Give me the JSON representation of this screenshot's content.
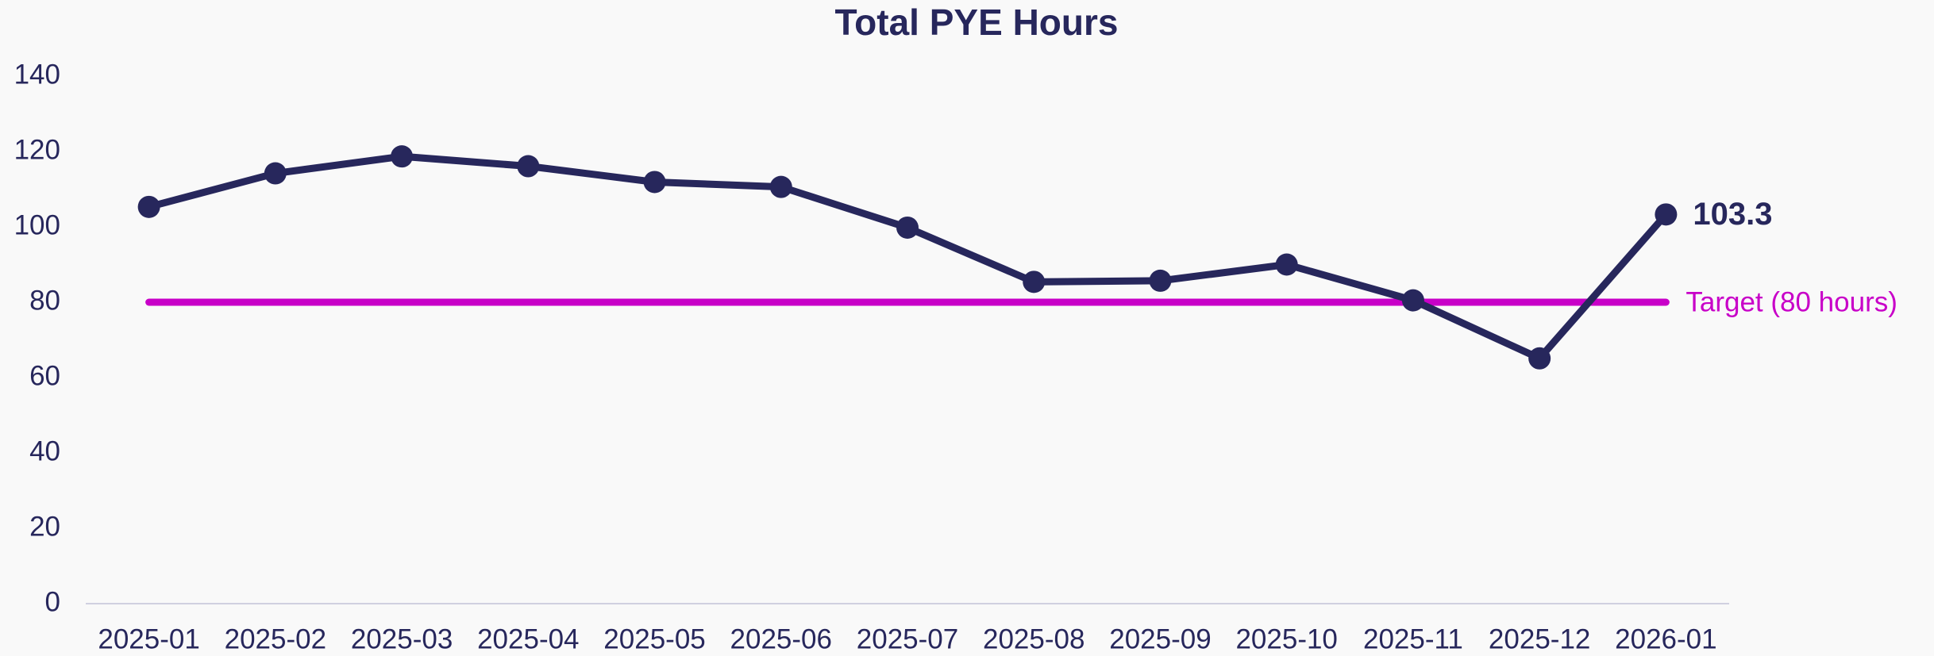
{
  "chart_data": {
    "type": "line",
    "title": "Total PYE Hours",
    "categories": [
      "2025-01",
      "2025-02",
      "2025-03",
      "2025-04",
      "2025-05",
      "2025-06",
      "2025-07",
      "2025-08",
      "2025-09",
      "2025-10",
      "2025-11",
      "2025-12",
      "2026-01"
    ],
    "series": [
      {
        "name": "Total PYE Hours",
        "color": "#27275c",
        "values": [
          105.3,
          114.2,
          118.7,
          116.1,
          111.9,
          110.6,
          99.8,
          85.4,
          85.7,
          90.0,
          80.5,
          65.1,
          103.3
        ]
      }
    ],
    "target": {
      "value": 80,
      "label": "Target (80 hours)",
      "color": "#c800c8"
    },
    "ylim": [
      0,
      140
    ],
    "yticks": [
      0,
      20,
      40,
      60,
      80,
      100,
      120,
      140
    ],
    "grid": false
  }
}
